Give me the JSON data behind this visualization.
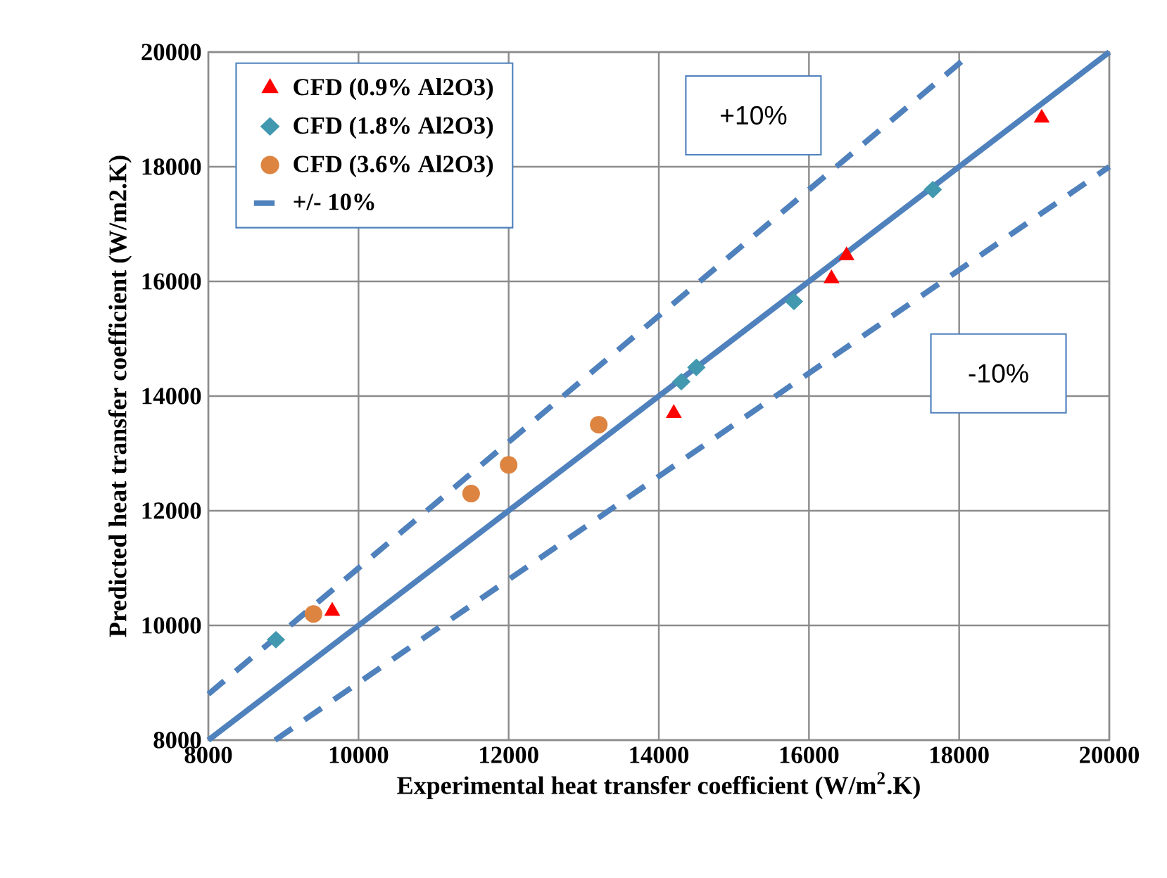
{
  "chart_data": {
    "type": "scatter",
    "xlabel": "Experimental heat transfer coefficient (W/m$^{2}$.K)",
    "ylabel": "Predicted heat transfer coefficient (W/m2.K)",
    "xlim": [
      8000,
      20000
    ],
    "ylim": [
      8000,
      20000
    ],
    "xticks": [
      8000,
      10000,
      12000,
      14000,
      16000,
      18000,
      20000
    ],
    "yticks": [
      8000,
      10000,
      12000,
      14000,
      16000,
      18000,
      20000
    ],
    "grid": true,
    "legend": "top left",
    "series": [
      {
        "name": "CFD (0.9% Al2O3)",
        "marker": "triangle",
        "color": "#ff0000",
        "x": [
          9650,
          14200,
          16300,
          16500,
          19100
        ],
        "values": [
          10250,
          13700,
          16050,
          16450,
          18850
        ]
      },
      {
        "name": "CFD (1.8% Al2O3)",
        "marker": "diamond",
        "color": "#4198af",
        "x": [
          8900,
          14300,
          14500,
          15800,
          17650
        ],
        "values": [
          9750,
          14250,
          14500,
          15650,
          17600
        ]
      },
      {
        "name": "CFD (3.6% Al2O3)",
        "marker": "circle",
        "color": "#dd8441",
        "x": [
          9400,
          11500,
          12000,
          13200
        ],
        "values": [
          10200,
          12300,
          12800,
          13500
        ]
      },
      {
        "name": "+/- 10%",
        "type": "line",
        "marker": "none",
        "line_style": "dashed",
        "color": "#4f81bd",
        "x": [
          8000,
          18182
        ],
        "values": [
          8800,
          20000
        ]
      },
      {
        "type": "line",
        "marker": "none",
        "line_style": "dashed",
        "color": "#4f81bd",
        "x": [
          8889,
          20000
        ],
        "values": [
          8000,
          18000
        ]
      },
      {
        "type": "line",
        "marker": "none",
        "line_style": "solid",
        "color": "#4f81bd",
        "x": [
          8000,
          20000
        ],
        "values": [
          8000,
          20000
        ]
      }
    ],
    "annotations": [
      "+10%",
      "-10%"
    ]
  }
}
